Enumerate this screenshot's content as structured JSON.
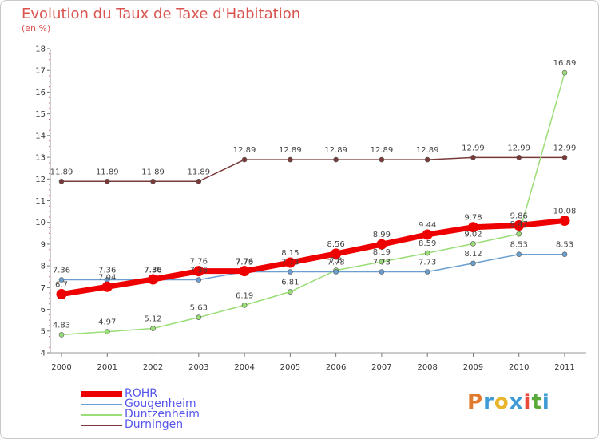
{
  "header": {
    "title": "Evolution du Taux de Taxe d'Habitation",
    "unit": "(en %)"
  },
  "logo": {
    "text": "Proxiti",
    "colors": [
      "#e07a2e",
      "#3e9bd6",
      "#e8b52c",
      "#3e9bd6",
      "#e84a3a",
      "#5aaa3a",
      "#3e9bd6"
    ]
  },
  "chart_data": {
    "type": "line",
    "title": "Evolution du Taux de Taxe d'Habitation",
    "ylabel": "(en %)",
    "xlabel": "",
    "ylim": [
      4,
      18
    ],
    "yticks": [
      4,
      5,
      6,
      7,
      8,
      9,
      10,
      11,
      12,
      13,
      14,
      15,
      16,
      17,
      18
    ],
    "grid": false,
    "legend": "bottom-left",
    "x": [
      "2000",
      "2001",
      "2002",
      "2003",
      "2004",
      "2005",
      "2006",
      "2007",
      "2008",
      "2009",
      "2010",
      "2011"
    ],
    "series": [
      {
        "name": "ROHR",
        "color": "#ee0000",
        "values": [
          6.7,
          7.04,
          7.38,
          7.76,
          7.76,
          8.15,
          8.56,
          8.99,
          9.44,
          9.78,
          9.86,
          10.08
        ],
        "labels": [
          "6.7",
          "7.04",
          "7.38",
          "7.76",
          "7.76",
          "8.15",
          "8.56",
          "8.99",
          "9.44",
          "9.78",
          "9.86",
          "10.08"
        ]
      },
      {
        "name": "Gougenheim",
        "color": "#6a9fd0",
        "values": [
          7.36,
          7.36,
          7.36,
          7.36,
          7.73,
          7.73,
          7.73,
          7.73,
          7.73,
          8.12,
          8.53,
          8.53
        ],
        "labels": [
          "7.36",
          "7.36",
          "7.36",
          "7.36",
          "7.73",
          "7.73",
          "7.73",
          "7.73",
          "7.73",
          "8.12",
          "8.53",
          "8.53"
        ]
      },
      {
        "name": "Duntzenheim",
        "color": "#99dd77",
        "values": [
          4.83,
          4.97,
          5.12,
          5.63,
          6.19,
          6.81,
          7.8,
          8.19,
          8.59,
          9.02,
          9.47,
          16.89
        ],
        "labels": [
          "4.83",
          "4.97",
          "5.12",
          "5.63",
          "6.19",
          "6.81",
          "7.8",
          "8.19",
          "8.59",
          "9.02",
          "9.47",
          "16.89"
        ]
      },
      {
        "name": "Durningen",
        "color": "#7a3a3a",
        "values": [
          11.89,
          11.89,
          11.89,
          11.89,
          12.89,
          12.89,
          12.89,
          12.89,
          12.89,
          12.99,
          12.99,
          12.99
        ],
        "labels": [
          "11.89",
          "11.89",
          "11.89",
          "11.89",
          "12.89",
          "12.89",
          "12.89",
          "12.89",
          "12.89",
          "12.99",
          "12.99",
          "12.99"
        ]
      }
    ]
  }
}
